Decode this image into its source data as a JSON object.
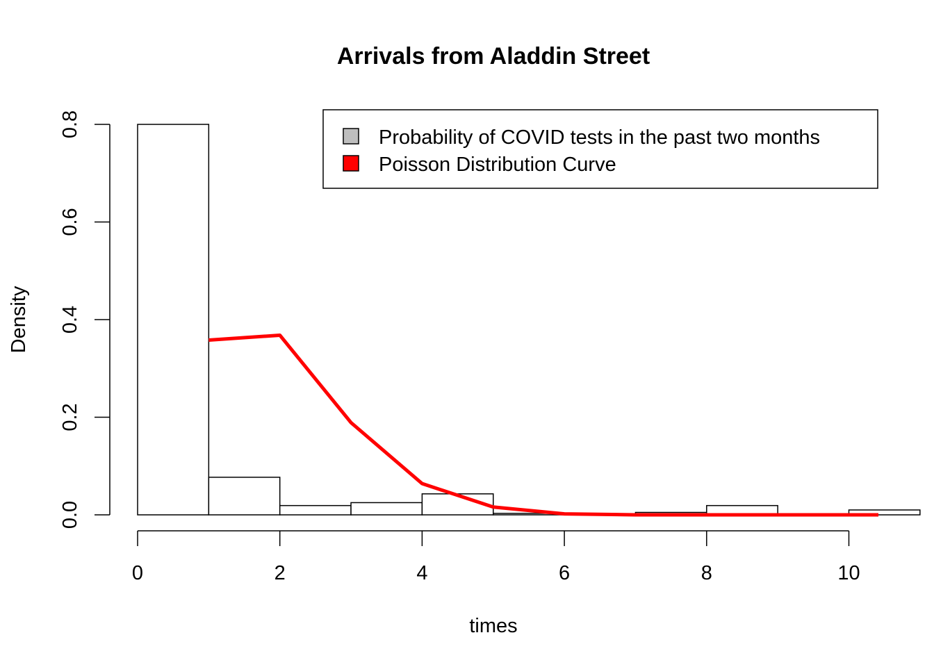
{
  "chart_data": {
    "type": "bar",
    "title": "Arrivals from Aladdin Street",
    "xlabel": "times",
    "ylabel": "Density",
    "xlim": [
      0,
      10
    ],
    "ylim": [
      0,
      0.8
    ],
    "x_ticks": [
      "0",
      "2",
      "4",
      "6",
      "8",
      "10"
    ],
    "y_ticks": [
      "0.0",
      "0.2",
      "0.4",
      "0.6",
      "0.8"
    ],
    "grid": false,
    "legend": {
      "placement": "top-right",
      "entries": [
        {
          "label": "Probability of COVID tests in the past two months",
          "color": "#bebebe"
        },
        {
          "label": "Poisson Distribution Curve",
          "color": "#ff0000"
        }
      ]
    },
    "series": [
      {
        "kind": "histogram",
        "bins": [
          {
            "from": 0,
            "to": 1,
            "density": 0.8
          },
          {
            "from": 1,
            "to": 2,
            "density": 0.077
          },
          {
            "from": 2,
            "to": 3,
            "density": 0.019
          },
          {
            "from": 3,
            "to": 4,
            "density": 0.025
          },
          {
            "from": 4,
            "to": 5,
            "density": 0.043
          },
          {
            "from": 5,
            "to": 6,
            "density": 0.003
          },
          {
            "from": 6,
            "to": 7,
            "density": 0.002
          },
          {
            "from": 7,
            "to": 8,
            "density": 0.005
          },
          {
            "from": 8,
            "to": 9,
            "density": 0.019
          },
          {
            "from": 9,
            "to": 10,
            "density": 0.001
          },
          {
            "from": 10,
            "to": 11,
            "density": 0.01
          }
        ],
        "fill": "#ffffff",
        "stroke": "#000000"
      },
      {
        "kind": "line",
        "color": "#ff0000",
        "x": [
          1,
          2,
          3,
          4,
          5,
          6,
          7,
          8,
          9,
          10,
          11
        ],
        "y": [
          0.358,
          0.368,
          0.189,
          0.064,
          0.016,
          0.002,
          0.0,
          0.0,
          0.0,
          0.0,
          0.0
        ]
      }
    ]
  }
}
